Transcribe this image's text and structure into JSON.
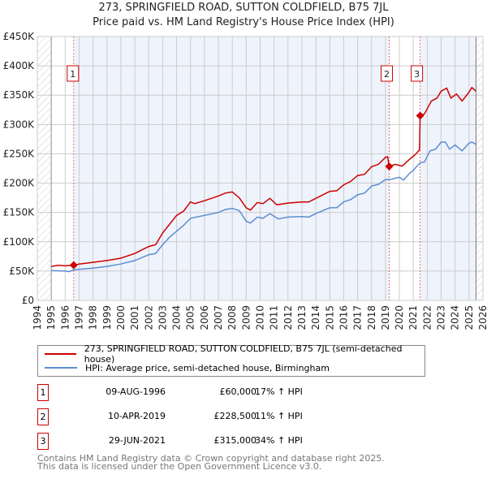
{
  "title": "273, SPRINGFIELD ROAD, SUTTON COLDFIELD, B75 7JL",
  "subtitle": "Price paid vs. HM Land Registry's House Price Index (HPI)",
  "chart_data": {
    "type": "line",
    "xlim": [
      1994,
      2026
    ],
    "ylim": [
      0,
      450000
    ],
    "yticks": [
      {
        "v": 0,
        "l": "£0"
      },
      {
        "v": 50000,
        "l": "£50K"
      },
      {
        "v": 100000,
        "l": "£100K"
      },
      {
        "v": 150000,
        "l": "£150K"
      },
      {
        "v": 200000,
        "l": "£200K"
      },
      {
        "v": 250000,
        "l": "£250K"
      },
      {
        "v": 300000,
        "l": "£300K"
      },
      {
        "v": 350000,
        "l": "£350K"
      },
      {
        "v": 400000,
        "l": "£400K"
      },
      {
        "v": 450000,
        "l": "£450K"
      }
    ],
    "xticks": [
      "1994",
      "1995",
      "1996",
      "1997",
      "1998",
      "1999",
      "2000",
      "2001",
      "2002",
      "2003",
      "2004",
      "2005",
      "2006",
      "2007",
      "2008",
      "2009",
      "2010",
      "2011",
      "2012",
      "2013",
      "2014",
      "2015",
      "2016",
      "2017",
      "2018",
      "2019",
      "2020",
      "2021",
      "2022",
      "2023",
      "2024",
      "2025",
      "2026"
    ],
    "series": [
      {
        "name": "273, SPRINGFIELD ROAD, SUTTON COLDFIELD, B75 7JL (semi-detached house)",
        "color": "#cc0000",
        "points": [
          [
            1995,
            58
          ],
          [
            1995.5,
            60
          ],
          [
            1996,
            59
          ],
          [
            1996.6,
            60
          ],
          [
            1997,
            62
          ],
          [
            1998,
            65
          ],
          [
            1999,
            68
          ],
          [
            2000,
            72
          ],
          [
            2001,
            80
          ],
          [
            2002,
            92
          ],
          [
            2002.5,
            95
          ],
          [
            2003,
            115
          ],
          [
            2003.5,
            130
          ],
          [
            2004,
            145
          ],
          [
            2004.5,
            152
          ],
          [
            2005,
            168
          ],
          [
            2005.3,
            165
          ],
          [
            2006,
            170
          ],
          [
            2007,
            178
          ],
          [
            2007.5,
            183
          ],
          [
            2008,
            185
          ],
          [
            2008.5,
            175
          ],
          [
            2009,
            158
          ],
          [
            2009.3,
            154
          ],
          [
            2009.8,
            167
          ],
          [
            2010.2,
            165
          ],
          [
            2010.7,
            174
          ],
          [
            2011.2,
            163
          ],
          [
            2012,
            166
          ],
          [
            2013,
            168
          ],
          [
            2013.5,
            168
          ],
          [
            2014,
            174
          ],
          [
            2015,
            186
          ],
          [
            2015.5,
            187
          ],
          [
            2016,
            197
          ],
          [
            2016.5,
            203
          ],
          [
            2017,
            213
          ],
          [
            2017.5,
            215
          ],
          [
            2018,
            228
          ],
          [
            2018.5,
            232
          ],
          [
            2019,
            244
          ],
          [
            2019.15,
            245
          ],
          [
            2019.27,
            228.5
          ],
          [
            2019.7,
            232
          ],
          [
            2020.2,
            229
          ],
          [
            2020.7,
            240
          ],
          [
            2021.2,
            250
          ],
          [
            2021.45,
            257
          ],
          [
            2021.49,
            315
          ],
          [
            2021.8,
            318
          ],
          [
            2022.3,
            340
          ],
          [
            2022.7,
            345
          ],
          [
            2023,
            357
          ],
          [
            2023.4,
            362
          ],
          [
            2023.7,
            345
          ],
          [
            2024.1,
            352
          ],
          [
            2024.5,
            340
          ],
          [
            2025,
            355
          ],
          [
            2025.2,
            363
          ],
          [
            2025.5,
            357
          ]
        ]
      },
      {
        "name": "HPI: Average price, semi-detached house, Birmingham",
        "color": "#5b8dd1",
        "points": [
          [
            1995,
            51
          ],
          [
            1996,
            50
          ],
          [
            1996.3,
            49
          ],
          [
            1996.6,
            52
          ],
          [
            1998,
            55
          ],
          [
            1999,
            58
          ],
          [
            2000,
            62
          ],
          [
            2001,
            68
          ],
          [
            2002,
            78
          ],
          [
            2002.5,
            80
          ],
          [
            2003,
            95
          ],
          [
            2003.5,
            108
          ],
          [
            2004,
            118
          ],
          [
            2004.5,
            128
          ],
          [
            2005,
            140
          ],
          [
            2006,
            145
          ],
          [
            2007,
            150
          ],
          [
            2007.5,
            155
          ],
          [
            2008,
            157
          ],
          [
            2008.5,
            153
          ],
          [
            2009,
            135
          ],
          [
            2009.3,
            132
          ],
          [
            2009.8,
            142
          ],
          [
            2010.2,
            140
          ],
          [
            2010.7,
            148
          ],
          [
            2011.3,
            139
          ],
          [
            2012,
            142
          ],
          [
            2013,
            143
          ],
          [
            2013.5,
            142
          ],
          [
            2014,
            148
          ],
          [
            2015,
            158
          ],
          [
            2015.5,
            158
          ],
          [
            2016,
            168
          ],
          [
            2016.5,
            172
          ],
          [
            2017,
            180
          ],
          [
            2017.5,
            183
          ],
          [
            2018,
            195
          ],
          [
            2018.5,
            198
          ],
          [
            2019,
            206
          ],
          [
            2019.3,
            206
          ],
          [
            2020,
            210
          ],
          [
            2020.3,
            205
          ],
          [
            2020.7,
            216
          ],
          [
            2021,
            222
          ],
          [
            2021.5,
            235
          ],
          [
            2021.8,
            236
          ],
          [
            2022.2,
            255
          ],
          [
            2022.6,
            258
          ],
          [
            2023,
            270
          ],
          [
            2023.3,
            270
          ],
          [
            2023.6,
            258
          ],
          [
            2024,
            265
          ],
          [
            2024.5,
            255
          ],
          [
            2025,
            268
          ],
          [
            2025.2,
            270
          ],
          [
            2025.5,
            266
          ]
        ]
      }
    ],
    "sales": [
      {
        "n": "1",
        "x": 1996.61,
        "y": 60
      },
      {
        "n": "2",
        "x": 2019.27,
        "y": 228.5
      },
      {
        "n": "3",
        "x": 2021.49,
        "y": 315
      }
    ],
    "data_end": 2025.5
  },
  "legend": {
    "red": "273, SPRINGFIELD ROAD, SUTTON COLDFIELD, B75 7JL (semi-detached house)",
    "blue": "HPI: Average price, semi-detached house, Birmingham"
  },
  "transactions": [
    {
      "n": "1",
      "date": "09-AUG-1996",
      "price": "£60,000",
      "hpi": "17% ↑ HPI"
    },
    {
      "n": "2",
      "date": "10-APR-2019",
      "price": "£228,500",
      "hpi": "11% ↑ HPI"
    },
    {
      "n": "3",
      "date": "29-JUN-2021",
      "price": "£315,000",
      "hpi": "34% ↑ HPI"
    }
  ],
  "footer": {
    "line1": "Contains HM Land Registry data © Crown copyright and database right 2025.",
    "line2": "This data is licensed under the Open Government Licence v3.0."
  }
}
